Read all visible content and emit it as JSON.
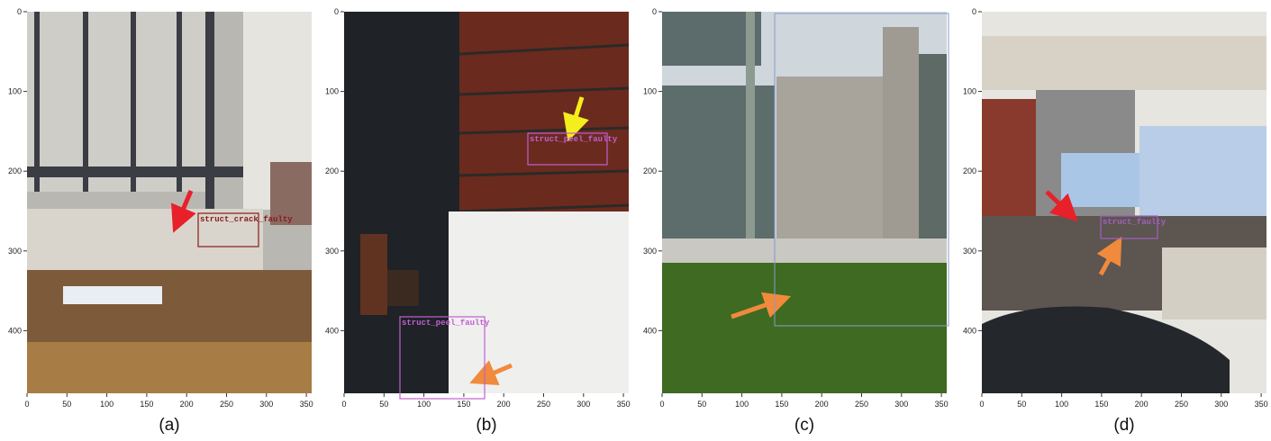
{
  "panels": [
    {
      "caption": "(a)",
      "xticks": [
        0,
        50,
        100,
        150,
        200,
        250,
        300,
        350
      ],
      "yticks": [
        0,
        100,
        200,
        300,
        400
      ],
      "boxes": [
        {
          "label": "struct_crack_faulty"
        }
      ]
    },
    {
      "caption": "(b)",
      "xticks": [
        0,
        50,
        100,
        150,
        200,
        250,
        300,
        350
      ],
      "yticks": [
        0,
        100,
        200,
        300,
        400
      ],
      "boxes": [
        {
          "label": "struct_peel_faulty"
        },
        {
          "label": "struct_peel_faulty"
        }
      ]
    },
    {
      "caption": "(c)",
      "xticks": [
        0,
        50,
        100,
        150,
        200,
        250,
        300,
        350
      ],
      "yticks": [
        0,
        100,
        200,
        300,
        400
      ],
      "boxes": []
    },
    {
      "caption": "(d)",
      "xticks": [
        0,
        50,
        100,
        150,
        200,
        250,
        300,
        350
      ],
      "yticks": [
        0,
        100,
        200,
        300,
        400
      ],
      "boxes": [
        {
          "label": "struct_faulty"
        }
      ]
    }
  ]
}
